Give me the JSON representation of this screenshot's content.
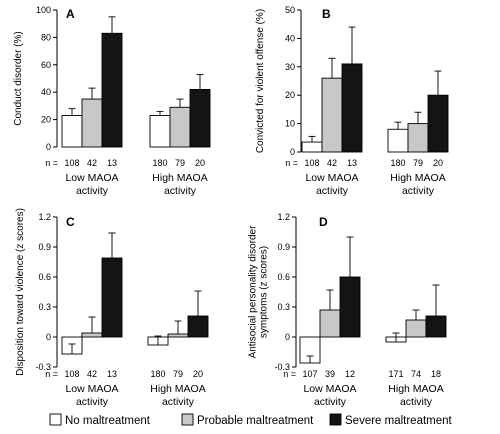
{
  "legend": [
    {
      "label": "No maltreatment",
      "color": "#ffffff"
    },
    {
      "label": "Probable maltreatment",
      "color": "#c8c8c8"
    },
    {
      "label": "Severe maltreatment",
      "color": "#141414"
    }
  ],
  "chart_data": [
    {
      "panel": "A",
      "type": "bar",
      "ylabel": "Conduct disorder (%)",
      "ylim": [
        0,
        100
      ],
      "yticks": [
        "0",
        "20",
        "40",
        "60",
        "80",
        "100"
      ],
      "n_prefix": "n =",
      "groups": [
        {
          "label_lines": [
            "Low MAOA",
            "activity"
          ],
          "bars": [
            {
              "n": "108",
              "value": 23,
              "err": 5
            },
            {
              "n": "42",
              "value": 35,
              "err": 8
            },
            {
              "n": "13",
              "value": 83,
              "err": 12
            }
          ]
        },
        {
          "label_lines": [
            "High MAOA",
            "activity"
          ],
          "bars": [
            {
              "n": "180",
              "value": 23,
              "err": 3
            },
            {
              "n": "79",
              "value": 29,
              "err": 6
            },
            {
              "n": "20",
              "value": 42,
              "err": 11
            }
          ]
        }
      ]
    },
    {
      "panel": "B",
      "type": "bar",
      "ylabel": "Convicted for violent offense (%)",
      "ylim": [
        0,
        50
      ],
      "yticks": [
        "0",
        "10",
        "20",
        "30",
        "40",
        "50"
      ],
      "n_prefix": "n =",
      "groups": [
        {
          "label_lines": [
            "Low MAOA",
            "activity"
          ],
          "bars": [
            {
              "n": "108",
              "value": 3.5,
              "err": 2
            },
            {
              "n": "42",
              "value": 26,
              "err": 7
            },
            {
              "n": "13",
              "value": 31,
              "err": 13
            }
          ]
        },
        {
          "label_lines": [
            "High MAOA",
            "activity"
          ],
          "bars": [
            {
              "n": "180",
              "value": 8,
              "err": 2.5
            },
            {
              "n": "79",
              "value": 10,
              "err": 4
            },
            {
              "n": "20",
              "value": 20,
              "err": 8.5
            }
          ]
        }
      ]
    },
    {
      "panel": "C",
      "type": "bar",
      "ylabel": "Disposition toward violence (z scores)",
      "ylim": [
        -0.3,
        1.2
      ],
      "yticks": [
        "-0.3",
        "0",
        "0.3",
        "0.6",
        "0.9",
        "1.2"
      ],
      "n_prefix": "n =",
      "groups": [
        {
          "label_lines": [
            "Low MAOA",
            "activity"
          ],
          "bars": [
            {
              "n": "108",
              "value": -0.17,
              "err": 0.1
            },
            {
              "n": "42",
              "value": 0.04,
              "err": 0.16
            },
            {
              "n": "13",
              "value": 0.79,
              "err": 0.25
            }
          ]
        },
        {
          "label_lines": [
            "High MAOA",
            "activity"
          ],
          "bars": [
            {
              "n": "180",
              "value": -0.08,
              "err": 0.09
            },
            {
              "n": "79",
              "value": 0.03,
              "err": 0.13
            },
            {
              "n": "20",
              "value": 0.21,
              "err": 0.25
            }
          ]
        }
      ]
    },
    {
      "panel": "D",
      "type": "bar",
      "ylabel": "Antisocial personality disorder symptoms (z scores)",
      "ylabel_lines": [
        "Antisocial personality disorder",
        "symptoms (z scores)"
      ],
      "ylim": [
        -0.3,
        1.2
      ],
      "yticks": [
        "-0.3",
        "0",
        "0.3",
        "0.6",
        "0.9",
        "1.2"
      ],
      "n_prefix": "n =",
      "groups": [
        {
          "label_lines": [
            "Low MAOA",
            "activity"
          ],
          "bars": [
            {
              "n": "107",
              "value": -0.26,
              "err": 0.07
            },
            {
              "n": "39",
              "value": 0.27,
              "err": 0.2
            },
            {
              "n": "12",
              "value": 0.6,
              "err": 0.4
            }
          ]
        },
        {
          "label_lines": [
            "High MAOA",
            "activity"
          ],
          "bars": [
            {
              "n": "171",
              "value": -0.05,
              "err": 0.09
            },
            {
              "n": "74",
              "value": 0.17,
              "err": 0.1
            },
            {
              "n": "18",
              "value": 0.21,
              "err": 0.31
            }
          ]
        }
      ]
    }
  ]
}
